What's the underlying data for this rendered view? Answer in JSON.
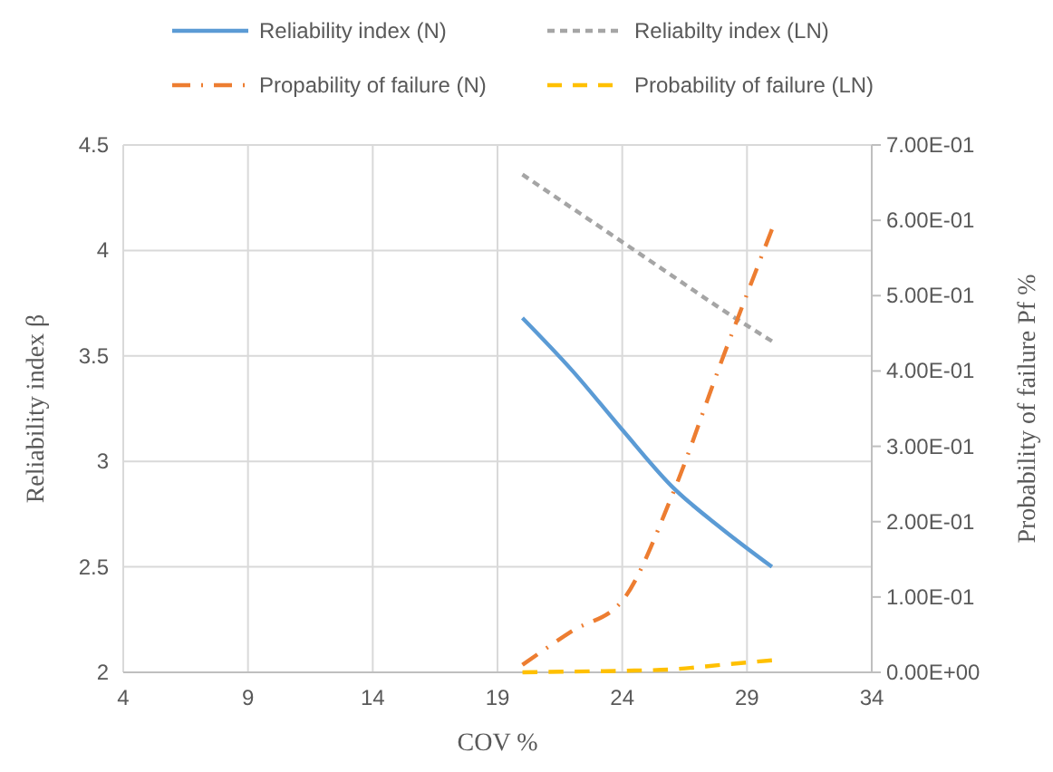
{
  "chart_data": {
    "type": "line",
    "xlabel": "COV %",
    "ylabel": "Reliability index β",
    "y2label": "Probability of failure Pf %",
    "x": [
      20,
      22,
      24,
      26,
      28,
      30
    ],
    "xlim": [
      4,
      34
    ],
    "xticks": [
      4,
      9,
      14,
      19,
      24,
      29,
      34
    ],
    "ylim": [
      2,
      4.5
    ],
    "yticks": [
      2,
      2.5,
      3,
      3.5,
      4,
      4.5
    ],
    "y2lim": [
      0,
      0.7
    ],
    "y2ticks": [
      {
        "value": 0,
        "label": "0.00E+00"
      },
      {
        "value": 0.1,
        "label": "1.00E-01"
      },
      {
        "value": 0.2,
        "label": "2.00E-01"
      },
      {
        "value": 0.3,
        "label": "3.00E-01"
      },
      {
        "value": 0.4,
        "label": "4.00E-01"
      },
      {
        "value": 0.5,
        "label": "5.00E-01"
      },
      {
        "value": 0.6,
        "label": "6.00E-01"
      },
      {
        "value": 0.7,
        "label": "7.00E-01"
      }
    ],
    "grid": true,
    "legend": "top",
    "series": [
      {
        "name": "Reliability index (N)",
        "color": "#5b9bd5",
        "values": [
          3.68,
          3.43,
          3.15,
          2.88,
          2.68,
          2.5
        ],
        "line_style": "solid"
      },
      {
        "name": "Reliabilty index (LN)",
        "color": "#a5a5a5",
        "values": [
          4.36,
          4.2,
          4.04,
          3.88,
          3.72,
          3.57
        ],
        "line_style": "dashed"
      },
      {
        "name": "Propability of failure (N)",
        "color": "#ed7d31",
        "values": [
          0.01,
          0.055,
          0.095,
          0.235,
          0.415,
          0.588
        ],
        "line_style": "dashdot",
        "axis": "y2"
      },
      {
        "name": "Probability of failure (LN)",
        "color": "#ffc000",
        "values": [
          0,
          0.001,
          0.002,
          0.004,
          0.01,
          0.016
        ],
        "line_style": "longdash",
        "axis": "y2"
      }
    ]
  }
}
